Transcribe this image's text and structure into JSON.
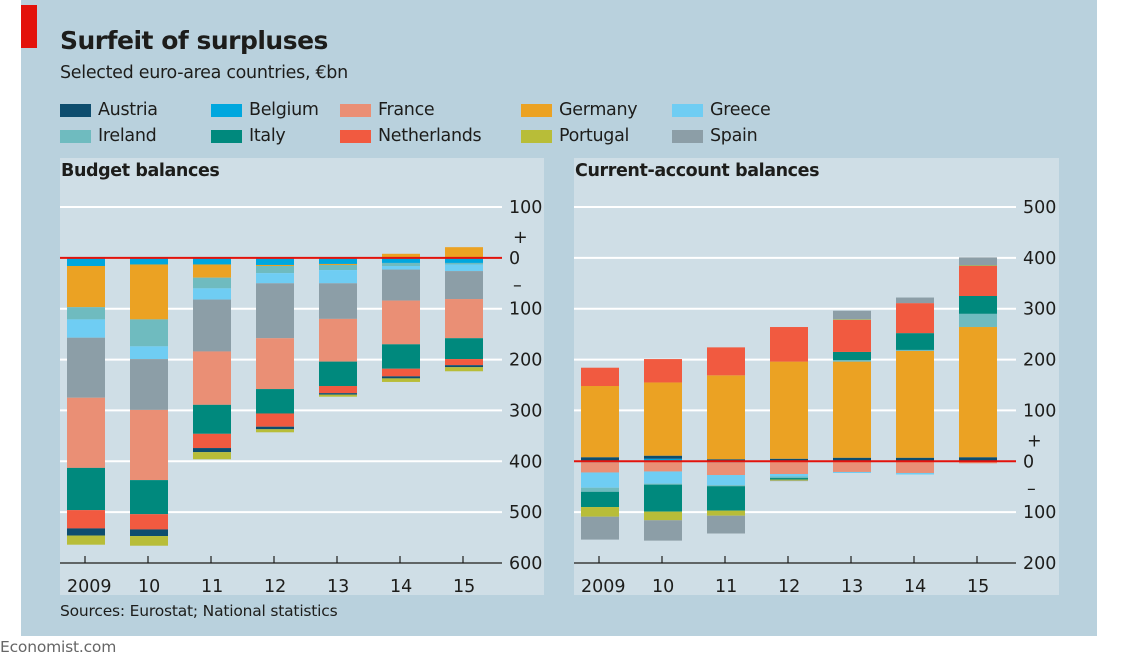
{
  "header": {
    "title": "Surfeit of surpluses",
    "subtitle": "Selected euro-area countries, €bn"
  },
  "colors": {
    "accent": "#e3120b",
    "zero_line": "#e3120b",
    "gridline": "#ffffff",
    "axis": "#1d1d1b"
  },
  "legend": [
    {
      "name": "Austria",
      "color": "#0e4d6e"
    },
    {
      "name": "Belgium",
      "color": "#00a7de"
    },
    {
      "name": "France",
      "color": "#ea8f75"
    },
    {
      "name": "Germany",
      "color": "#eba223"
    },
    {
      "name": "Greece",
      "color": "#6fcdf3"
    },
    {
      "name": "Ireland",
      "color": "#6fbbbf"
    },
    {
      "name": "Italy",
      "color": "#00897d"
    },
    {
      "name": "Netherlands",
      "color": "#f15a40"
    },
    {
      "name": "Portugal",
      "color": "#b8bd38"
    },
    {
      "name": "Spain",
      "color": "#8c9ea7"
    }
  ],
  "chart_data": [
    {
      "type": "bar",
      "stacked": true,
      "title": "Budget balances",
      "categories": [
        "2009",
        "10",
        "11",
        "12",
        "13",
        "14",
        "15"
      ],
      "ylim": [
        -600,
        100
      ],
      "yticks": [
        100,
        0,
        -100,
        -200,
        -300,
        -400,
        -500,
        -600
      ],
      "ytick_labels": [
        "100",
        "0",
        "100",
        "200",
        "300",
        "400",
        "500",
        "600"
      ],
      "sign_labels": {
        "plus": "+",
        "minus": "–"
      },
      "grid": true,
      "legend_position": "top",
      "negative_stack_order": [
        "Belgium",
        "Germany",
        "Ireland",
        "Greece",
        "Spain",
        "France",
        "Italy",
        "Netherlands",
        "Austria",
        "Portugal"
      ],
      "series": [
        {
          "name": "Austria",
          "values": [
            -14,
            -13,
            -8,
            -5,
            -3,
            -4,
            -4
          ]
        },
        {
          "name": "Belgium",
          "values": [
            -16,
            -13,
            -13,
            -14,
            -12,
            -10,
            -10
          ]
        },
        {
          "name": "France",
          "values": [
            -138,
            -138,
            -105,
            -100,
            -84,
            -86,
            -77
          ]
        },
        {
          "name": "Germany",
          "values": [
            -81,
            -108,
            -26,
            -2,
            -2,
            8,
            21
          ]
        },
        {
          "name": "Greece",
          "values": [
            -36,
            -25,
            -22,
            -20,
            -26,
            -7,
            -13
          ]
        },
        {
          "name": "Ireland",
          "values": [
            -24,
            -53,
            -21,
            -14,
            -10,
            -6,
            -3
          ]
        },
        {
          "name": "Italy",
          "values": [
            -83,
            -67,
            -57,
            -48,
            -48,
            -48,
            -41
          ]
        },
        {
          "name": "Netherlands",
          "values": [
            -36,
            -30,
            -28,
            -26,
            -14,
            -15,
            -12
          ]
        },
        {
          "name": "Portugal",
          "values": [
            -18,
            -19,
            -14,
            -6,
            -4,
            -7,
            -8
          ]
        },
        {
          "name": "Spain",
          "values": [
            -118,
            -100,
            -102,
            -108,
            -70,
            -61,
            -55
          ]
        }
      ]
    },
    {
      "type": "bar",
      "stacked": true,
      "title": "Current-account balances",
      "categories": [
        "2009",
        "10",
        "11",
        "12",
        "13",
        "14",
        "15"
      ],
      "ylim": [
        -200,
        500
      ],
      "yticks": [
        500,
        400,
        300,
        200,
        100,
        0,
        -100,
        -200
      ],
      "ytick_labels": [
        "500",
        "400",
        "300",
        "200",
        "100",
        "0",
        "100",
        "200"
      ],
      "sign_labels": {
        "plus": "+",
        "minus": "–"
      },
      "grid": true,
      "legend_position": "top",
      "positive_stack_order": [
        "Belgium",
        "Austria",
        "Germany",
        "Ireland",
        "Italy",
        "Netherlands",
        "Portugal",
        "Spain"
      ],
      "negative_stack_order": [
        "Belgium",
        "France",
        "Greece",
        "Ireland",
        "Italy",
        "Portugal",
        "Spain"
      ],
      "series": [
        {
          "name": "Austria",
          "values": [
            8,
            6,
            4,
            5,
            7,
            7,
            8
          ]
        },
        {
          "name": "Belgium",
          "values": [
            -2,
            5,
            -2,
            -1,
            -1,
            -1,
            -1
          ]
        },
        {
          "name": "France",
          "values": [
            -20,
            -20,
            -25,
            -24,
            -20,
            -22,
            -3
          ]
        },
        {
          "name": "Germany",
          "values": [
            140,
            144,
            165,
            191,
            189,
            210,
            256
          ]
        },
        {
          "name": "Greece",
          "values": [
            -30,
            -24,
            -20,
            -5,
            -2,
            -3,
            0
          ]
        },
        {
          "name": "Ireland",
          "values": [
            -8,
            -2,
            -2,
            -3,
            3,
            2,
            26
          ]
        },
        {
          "name": "Italy",
          "values": [
            -30,
            -53,
            -48,
            -3,
            16,
            33,
            35
          ]
        },
        {
          "name": "Netherlands",
          "values": [
            36,
            46,
            55,
            68,
            63,
            59,
            59
          ]
        },
        {
          "name": "Portugal",
          "values": [
            -19,
            -17,
            -10,
            -2,
            1,
            0,
            1
          ]
        },
        {
          "name": "Spain",
          "values": [
            -45,
            -40,
            -35,
            -1,
            17,
            11,
            16
          ]
        }
      ]
    }
  ],
  "footer": {
    "source": "Sources: Eurostat; National statistics",
    "credit": "Economist.com"
  }
}
